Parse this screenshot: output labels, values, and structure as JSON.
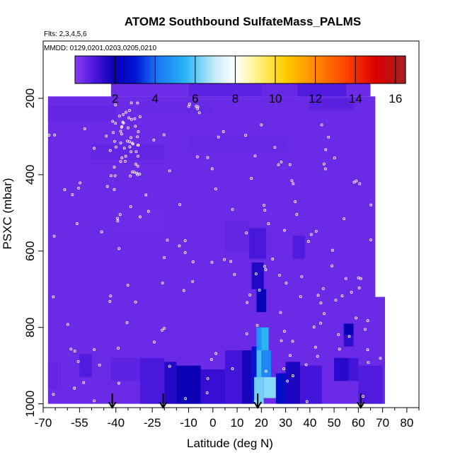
{
  "chart_data": {
    "type": "heatmap",
    "title": "ATOM2 Southbound SulfateMass_PALMS",
    "subtitle_flights": "Flts: 2,3,4,5,6",
    "subtitle_dates": "MMDD: 0129,0201,0203,0205,0210",
    "xlabel": "Latitude (deg N)",
    "ylabel": "PSXC (mbar)",
    "xlim": [
      -70,
      85
    ],
    "ylim": [
      1010,
      50
    ],
    "x_ticks": [
      -70,
      -55,
      -40,
      -25,
      -10,
      0,
      10,
      20,
      30,
      40,
      50,
      60,
      70,
      80
    ],
    "x_tick_labels": [
      "-70",
      "-55",
      "-40",
      "-25",
      "-10",
      "0",
      "10",
      "20",
      "30",
      "40",
      "50",
      "60",
      "70",
      "80"
    ],
    "x_minor_ticks": [
      -65,
      -60,
      -50,
      -45,
      -35,
      -30,
      -20,
      -15,
      -5,
      5,
      15,
      25,
      35,
      45,
      55,
      65,
      75,
      85
    ],
    "y_ticks": [
      200,
      400,
      600,
      800,
      1000
    ],
    "y_tick_labels": [
      "200",
      "400",
      "600",
      "800",
      "1000"
    ],
    "colorbar": {
      "range": [
        0,
        16.5
      ],
      "ticks": [
        2,
        4,
        6,
        8,
        10,
        12,
        14,
        16
      ],
      "tick_labels": [
        "2",
        "4",
        "6",
        "8",
        "10",
        "12",
        "14",
        "16"
      ],
      "boundaries": [
        2,
        4,
        6,
        8,
        10,
        12,
        14,
        16
      ],
      "stops": [
        [
          0,
          "#8b3cf0"
        ],
        [
          1.2,
          "#3c10d8"
        ],
        [
          2,
          "#0a00b4"
        ],
        [
          3,
          "#0014d4"
        ],
        [
          4,
          "#1a70f5"
        ],
        [
          5.5,
          "#28b4f5"
        ],
        [
          7,
          "#c8ecfa"
        ],
        [
          8,
          "#ffffff"
        ],
        [
          9.2,
          "#fff07a"
        ],
        [
          10.5,
          "#ffcc00"
        ],
        [
          12,
          "#ff8800"
        ],
        [
          13.5,
          "#ff4400"
        ],
        [
          15,
          "#dd0000"
        ],
        [
          16.5,
          "#a52020"
        ]
      ]
    },
    "background_value": 0.5,
    "cells": [
      {
        "lat": [
          -42,
          -10
        ],
        "p": [
          160,
          195
        ],
        "v": 0.45
      },
      {
        "lat": [
          -10,
          20
        ],
        "p": [
          160,
          195
        ],
        "v": 0.7
      },
      {
        "lat": [
          20,
          35
        ],
        "p": [
          160,
          195
        ],
        "v": 0.55
      },
      {
        "lat": [
          35,
          55
        ],
        "p": [
          160,
          195
        ],
        "v": 0.9
      },
      {
        "lat": [
          -68,
          -40
        ],
        "p": [
          220,
          260
        ],
        "v": 0.6
      },
      {
        "lat": [
          -30,
          0
        ],
        "p": [
          220,
          240
        ],
        "v": 0.55
      },
      {
        "lat": [
          40,
          58
        ],
        "p": [
          200,
          230
        ],
        "v": 0.75
      },
      {
        "lat": [
          -50,
          -20
        ],
        "p": [
          320,
          360
        ],
        "v": 0.6
      },
      {
        "lat": [
          -10,
          30
        ],
        "p": [
          300,
          340
        ],
        "v": 0.55
      },
      {
        "lat": [
          -40,
          -20
        ],
        "p": [
          490,
          560
        ],
        "v": 0.45
      },
      {
        "lat": [
          5,
          15
        ],
        "p": [
          520,
          600
        ],
        "v": 0.6
      },
      {
        "lat": [
          15,
          22
        ],
        "p": [
          540,
          620
        ],
        "v": 1.0
      },
      {
        "lat": [
          16,
          21
        ],
        "p": [
          630,
          700
        ],
        "v": 1.6
      },
      {
        "lat": [
          18,
          22
        ],
        "p": [
          700,
          760
        ],
        "v": 2.2
      },
      {
        "lat": [
          33,
          38
        ],
        "p": [
          560,
          620
        ],
        "v": 0.9
      },
      {
        "lat": [
          54,
          58
        ],
        "p": [
          790,
          820
        ],
        "v": 2.0
      },
      {
        "lat": [
          54,
          58
        ],
        "p": [
          820,
          850
        ],
        "v": 1.4
      },
      {
        "lat": [
          -68,
          -64
        ],
        "p": [
          890,
          960
        ],
        "v": 0.6
      },
      {
        "lat": [
          -55,
          -50
        ],
        "p": [
          870,
          930
        ],
        "v": 0.9
      },
      {
        "lat": [
          -42,
          -30
        ],
        "p": [
          880,
          940
        ],
        "v": 0.7
      },
      {
        "lat": [
          -30,
          -20
        ],
        "p": [
          880,
          1000
        ],
        "v": 1.0
      },
      {
        "lat": [
          -20,
          -15
        ],
        "p": [
          890,
          1000
        ],
        "v": 1.6
      },
      {
        "lat": [
          -15,
          -5
        ],
        "p": [
          900,
          1000
        ],
        "v": 2.0
      },
      {
        "lat": [
          -5,
          5
        ],
        "p": [
          910,
          1000
        ],
        "v": 1.3
      },
      {
        "lat": [
          5,
          12
        ],
        "p": [
          860,
          1000
        ],
        "v": 1.1
      },
      {
        "lat": [
          12,
          16
        ],
        "p": [
          860,
          1000
        ],
        "v": 1.8
      },
      {
        "lat": [
          16,
          18
        ],
        "p": [
          850,
          1000
        ],
        "v": 3.0
      },
      {
        "lat": [
          18,
          20
        ],
        "p": [
          800,
          860
        ],
        "v": 4.8
      },
      {
        "lat": [
          20,
          23
        ],
        "p": [
          800,
          860
        ],
        "v": 5.5
      },
      {
        "lat": [
          18,
          20
        ],
        "p": [
          860,
          930
        ],
        "v": 5.8
      },
      {
        "lat": [
          20,
          24
        ],
        "p": [
          860,
          930
        ],
        "v": 4.5
      },
      {
        "lat": [
          17,
          21
        ],
        "p": [
          930,
          1000
        ],
        "v": 6.2
      },
      {
        "lat": [
          21,
          26
        ],
        "p": [
          930,
          985
        ],
        "v": 6.4
      },
      {
        "lat": [
          26,
          30
        ],
        "p": [
          920,
          1000
        ],
        "v": 2.6
      },
      {
        "lat": [
          30,
          36
        ],
        "p": [
          890,
          1000
        ],
        "v": 1.7
      },
      {
        "lat": [
          36,
          45
        ],
        "p": [
          900,
          1000
        ],
        "v": 1.1
      },
      {
        "lat": [
          50,
          56
        ],
        "p": [
          880,
          940
        ],
        "v": 1.5
      },
      {
        "lat": [
          56,
          60
        ],
        "p": [
          880,
          940
        ],
        "v": 1.1
      },
      {
        "lat": [
          60,
          70
        ],
        "p": [
          900,
          1000
        ],
        "v": 0.9
      }
    ],
    "flight_extent": [
      {
        "lat": [
          -42,
          65
        ],
        "p": [
          160,
          195
        ]
      },
      {
        "lat": [
          -68,
          67
        ],
        "p": [
          195,
          720
        ]
      },
      {
        "lat": [
          -68,
          71
        ],
        "p": [
          720,
          1000
        ]
      }
    ],
    "arrows_lat": [
      -41.5,
      -20.5,
      18.5,
      61
    ]
  }
}
